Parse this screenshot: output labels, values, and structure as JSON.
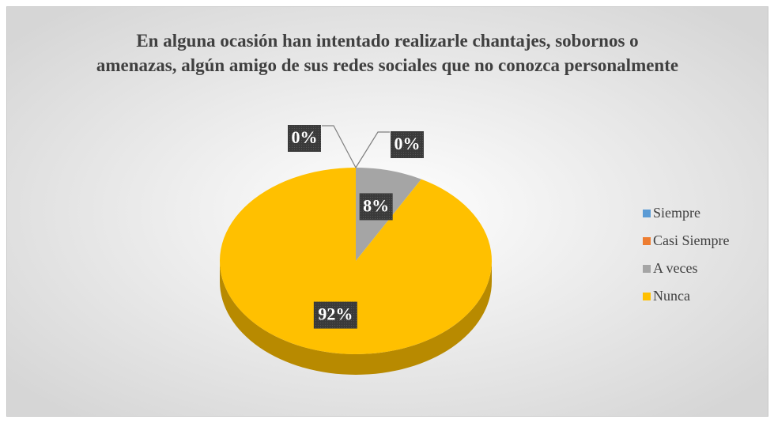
{
  "chart_data": {
    "type": "pie",
    "title": "En alguna ocasión han intentado realizarle chantajes, sobornos o amenazas, algún amigo de sus redes sociales que no conozca personalmente",
    "categories": [
      "Siempre",
      "Casi Siempre",
      "A veces",
      "Nunca"
    ],
    "values": [
      0,
      0,
      8,
      92
    ],
    "value_labels": [
      "0%",
      "0%",
      "8%",
      "92%"
    ],
    "colors": [
      "#5b9bd5",
      "#ed7d31",
      "#a5a5a5",
      "#ffc000"
    ],
    "legend": "right"
  }
}
